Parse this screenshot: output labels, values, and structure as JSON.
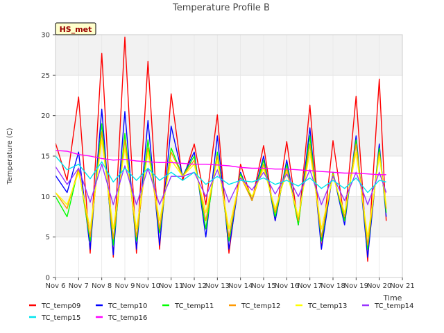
{
  "chart_data": {
    "type": "line",
    "title": "Temperature Profile B",
    "xlabel": "Time",
    "ylabel": "Temperature (C)",
    "annotation": "HS_met",
    "x_range_days": [
      6,
      21
    ],
    "ylim": [
      0,
      30
    ],
    "yticks": [
      0,
      5,
      10,
      15,
      20,
      25,
      30
    ],
    "xticks": [
      {
        "day": 6,
        "label": "Nov 6"
      },
      {
        "day": 7,
        "label": "Nov 7"
      },
      {
        "day": 8,
        "label": "Nov 8"
      },
      {
        "day": 9,
        "label": "Nov 9"
      },
      {
        "day": 10,
        "label": "Nov 10"
      },
      {
        "day": 11,
        "label": "Nov 11"
      },
      {
        "day": 12,
        "label": "Nov 12"
      },
      {
        "day": 13,
        "label": "Nov 13"
      },
      {
        "day": 14,
        "label": "Nov 14"
      },
      {
        "day": 15,
        "label": "Nov 15"
      },
      {
        "day": 16,
        "label": "Nov 16"
      },
      {
        "day": 17,
        "label": "Nov 17"
      },
      {
        "day": 18,
        "label": "Nov 18"
      },
      {
        "day": 19,
        "label": "Nov 19"
      },
      {
        "day": 20,
        "label": "Nov 20"
      },
      {
        "day": 21,
        "label": "Nov 21"
      }
    ],
    "grid": true,
    "background_bands": true,
    "legend_placement": "bottom",
    "days": [
      6.0,
      6.5,
      7.0,
      7.5,
      8.0,
      8.5,
      9.0,
      9.5,
      10.0,
      10.5,
      11.0,
      11.5,
      12.0,
      12.5,
      13.0,
      13.5,
      14.0,
      14.5,
      15.0,
      15.5,
      16.0,
      16.5,
      17.0,
      17.5,
      18.0,
      18.5,
      19.0,
      19.5,
      20.0,
      20.3
    ],
    "series": [
      {
        "name": "TC_temp09",
        "color": "#ff0000",
        "values": [
          16.6,
          12.0,
          22.3,
          3.0,
          27.7,
          2.5,
          29.7,
          3.0,
          26.7,
          3.5,
          22.7,
          12.0,
          16.5,
          9.0,
          20.1,
          3.0,
          14.0,
          9.5,
          16.3,
          7.0,
          16.8,
          6.5,
          21.3,
          3.5,
          16.9,
          7.0,
          22.4,
          2.0,
          24.5,
          7.0
        ]
      },
      {
        "name": "TC_temp10",
        "color": "#0000ff",
        "values": [
          12.6,
          10.5,
          15.5,
          3.5,
          20.8,
          2.8,
          20.5,
          3.5,
          19.4,
          4.0,
          18.7,
          12.5,
          15.5,
          5.0,
          17.5,
          3.5,
          13.0,
          9.5,
          15.0,
          7.0,
          14.5,
          6.5,
          18.5,
          3.5,
          13.0,
          6.5,
          17.5,
          2.5,
          16.5,
          7.5
        ]
      },
      {
        "name": "TC_temp11",
        "color": "#00ff00",
        "values": [
          10.0,
          7.5,
          13.5,
          4.5,
          19.0,
          4.0,
          17.8,
          4.5,
          17.0,
          5.5,
          16.0,
          12.5,
          15.0,
          6.0,
          15.5,
          4.5,
          12.8,
          9.5,
          14.5,
          7.5,
          14.0,
          6.5,
          17.5,
          4.5,
          13.0,
          7.0,
          17.0,
          3.5,
          16.0,
          8.0
        ]
      },
      {
        "name": "TC_temp12",
        "color": "#ff9900",
        "values": [
          10.5,
          8.5,
          13.5,
          5.0,
          18.0,
          4.8,
          17.0,
          5.0,
          16.0,
          6.0,
          15.5,
          12.5,
          14.5,
          7.0,
          15.0,
          5.0,
          12.5,
          9.5,
          14.0,
          8.0,
          13.5,
          7.0,
          16.5,
          5.0,
          12.8,
          7.5,
          16.5,
          4.0,
          15.5,
          8.5
        ]
      },
      {
        "name": "TC_temp13",
        "color": "#ffff00",
        "values": [
          10.5,
          9.0,
          13.0,
          6.0,
          17.0,
          6.0,
          16.0,
          6.0,
          15.5,
          7.0,
          14.5,
          12.5,
          14.0,
          8.0,
          14.5,
          6.0,
          12.5,
          10.0,
          13.5,
          8.5,
          13.0,
          7.5,
          15.5,
          6.0,
          12.5,
          8.0,
          15.5,
          5.0,
          15.0,
          9.0
        ]
      },
      {
        "name": "TC_temp14",
        "color": "#9933ff",
        "values": [
          13.7,
          11.5,
          13.5,
          9.3,
          14.0,
          9.0,
          13.8,
          9.0,
          13.5,
          9.0,
          12.5,
          12.5,
          13.0,
          10.0,
          13.3,
          9.3,
          12.3,
          10.8,
          13.0,
          10.3,
          12.8,
          10.0,
          13.3,
          9.0,
          12.5,
          9.5,
          13.0,
          9.0,
          13.0,
          10.5
        ]
      },
      {
        "name": "TC_temp15",
        "color": "#00e5ee",
        "values": [
          15.0,
          13.3,
          14.0,
          12.2,
          14.3,
          11.8,
          13.5,
          12.0,
          13.5,
          12.0,
          13.0,
          12.0,
          13.0,
          11.5,
          12.5,
          11.5,
          12.0,
          11.8,
          12.3,
          11.5,
          12.0,
          11.3,
          12.3,
          11.0,
          12.0,
          11.0,
          12.3,
          10.5,
          12.0,
          11.8
        ]
      },
      {
        "name": "TC_temp16",
        "color": "#ff00ff",
        "values": [
          15.7,
          15.6,
          15.2,
          15.0,
          14.7,
          14.5,
          14.6,
          14.4,
          14.3,
          14.2,
          14.2,
          14.1,
          14.0,
          14.0,
          13.9,
          13.8,
          13.6,
          13.5,
          13.5,
          13.4,
          13.4,
          13.3,
          13.2,
          13.1,
          13.0,
          12.9,
          12.9,
          12.8,
          12.7,
          12.7
        ]
      }
    ]
  }
}
